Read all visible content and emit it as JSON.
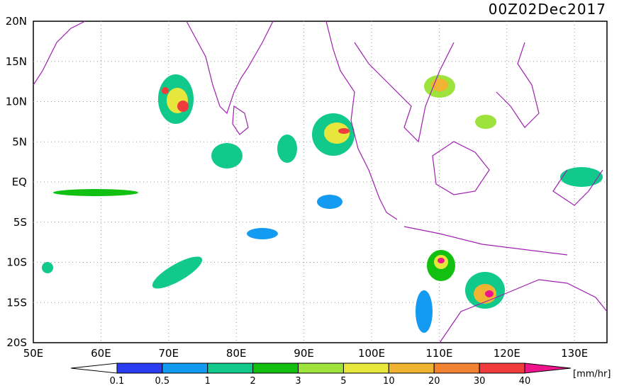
{
  "title": "00Z02Dec2017",
  "lat_labels": [
    "20N",
    "15N",
    "10N",
    "5N",
    "EQ",
    "5S",
    "10S",
    "15S",
    "20S"
  ],
  "lon_labels": [
    "50E",
    "60E",
    "70E",
    "80E",
    "90E",
    "100E",
    "110E",
    "120E",
    "130E"
  ],
  "colorbar": {
    "labels": [
      "0.1",
      "0.5",
      "1",
      "2",
      "3",
      "5",
      "10",
      "20",
      "30",
      "40"
    ],
    "colors": [
      "#ffffff",
      "#2a3cf0",
      "#129bf0",
      "#12c98c",
      "#12c012",
      "#9ee23c",
      "#e6e63c",
      "#f0b432",
      "#f08232",
      "#f03c3c",
      "#f0148c"
    ],
    "unit": "[mm/hr]"
  }
}
